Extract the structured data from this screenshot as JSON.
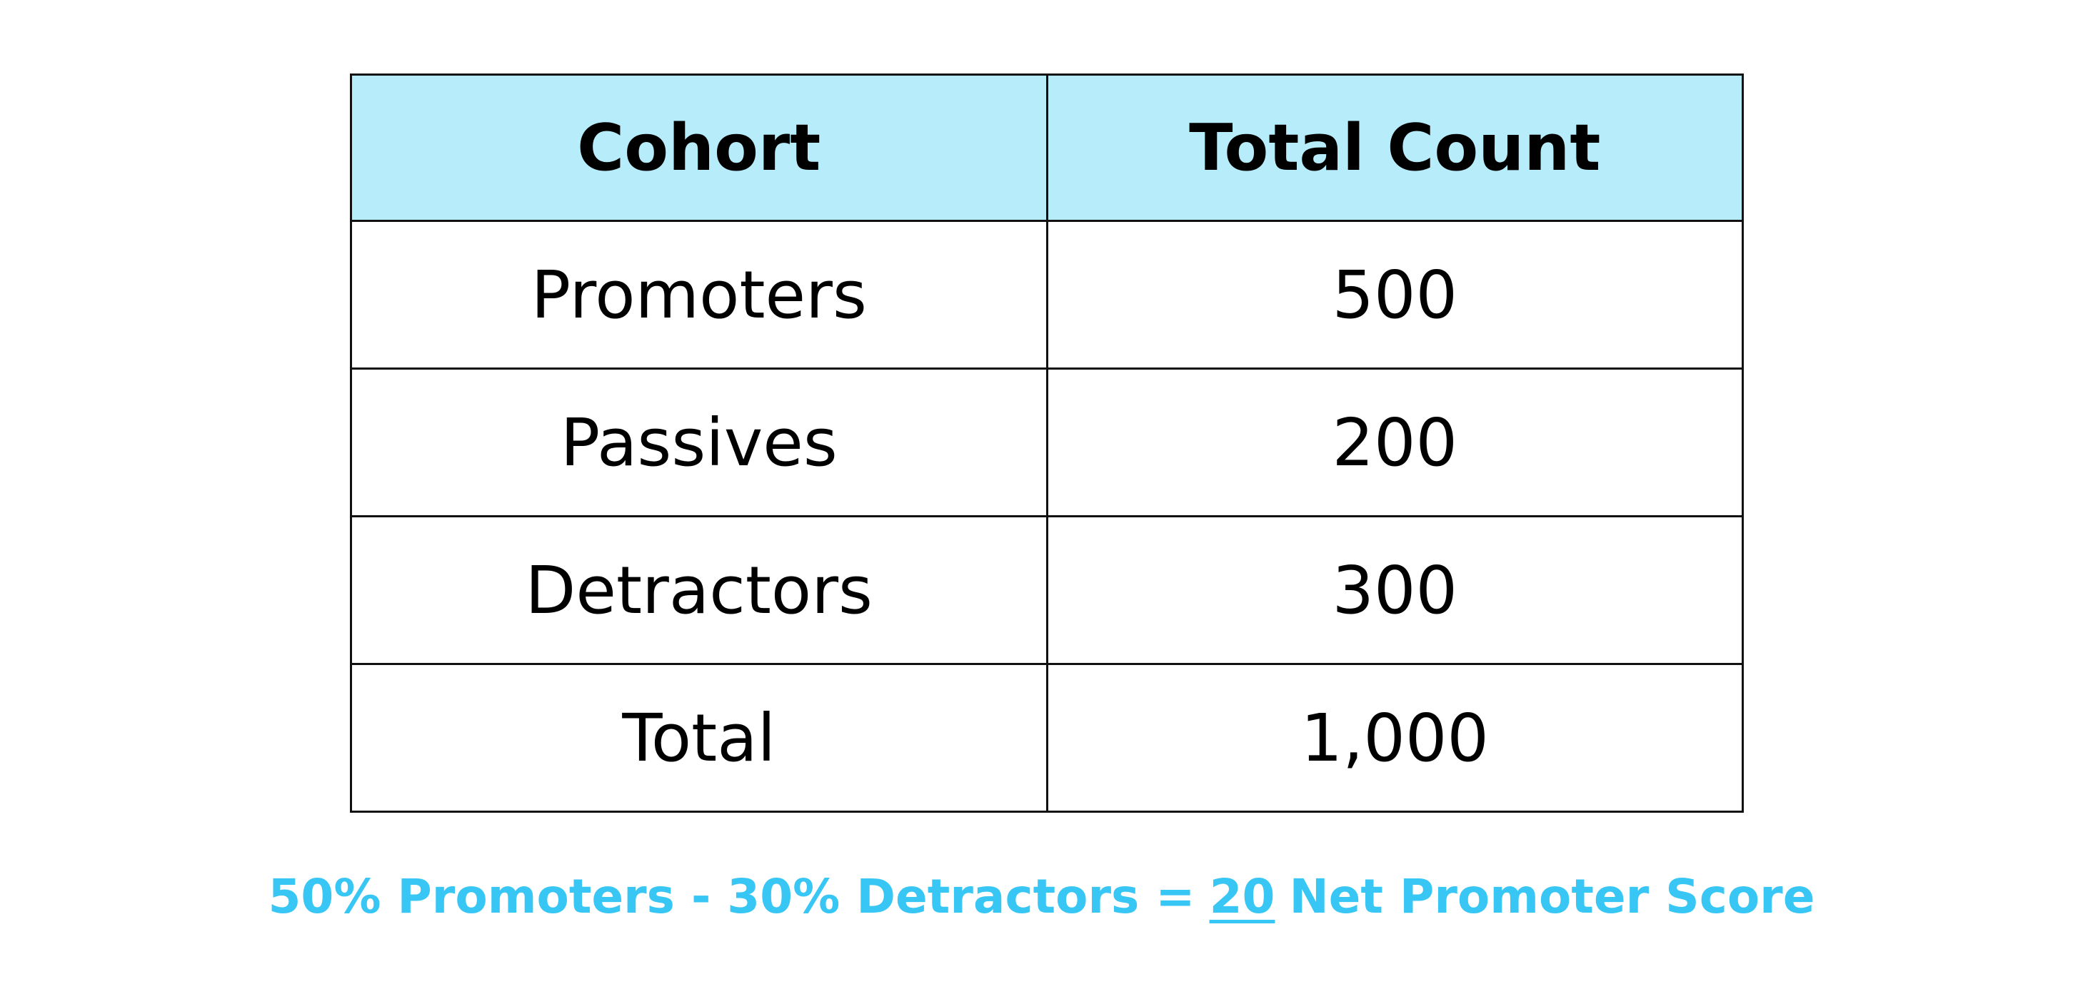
{
  "table": {
    "header": [
      "Cohort",
      "Total Count"
    ],
    "rows": [
      [
        "Promoters",
        "500"
      ],
      [
        "Passives",
        "200"
      ],
      [
        "Detractors",
        "300"
      ],
      [
        "Total",
        "1,000"
      ]
    ]
  },
  "footer": {
    "prefix": "50% Promoters - 30% Detractors =",
    "score": "20",
    "suffix": "Net Promoter Score"
  }
}
